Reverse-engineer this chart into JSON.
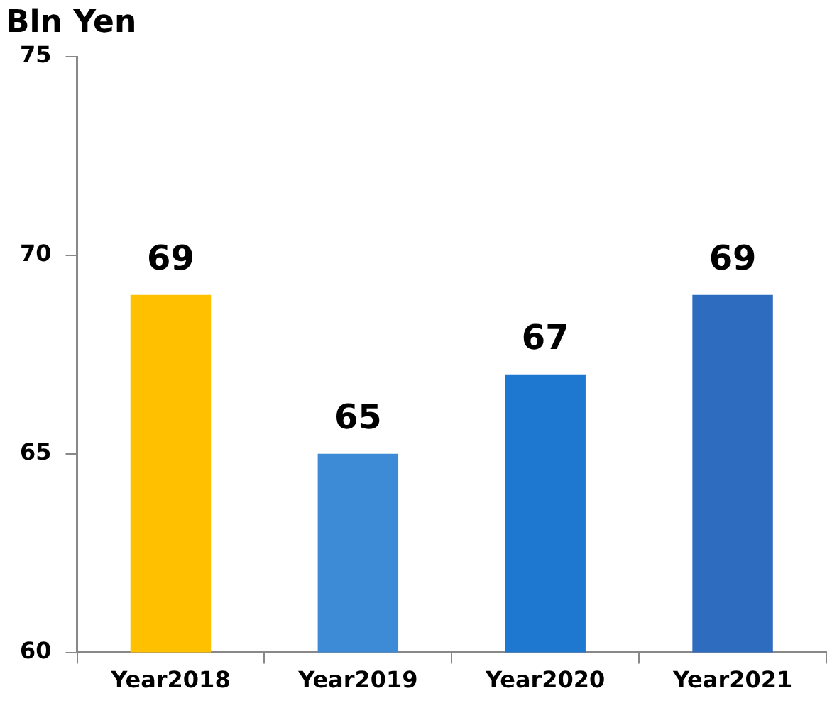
{
  "chart_data": {
    "type": "bar",
    "ylabel": "Bln Yen",
    "categories": [
      "Year2018",
      "Year2019",
      "Year2020",
      "Year2021"
    ],
    "values": [
      69,
      65,
      67,
      69
    ],
    "colors": [
      "#ffc000",
      "#3d8bd6",
      "#1f78cf",
      "#2e6cc0"
    ],
    "ylim": [
      60,
      75
    ],
    "yticks": [
      60,
      65,
      70,
      75
    ],
    "grid": false,
    "legend": false,
    "data_labels": true
  }
}
